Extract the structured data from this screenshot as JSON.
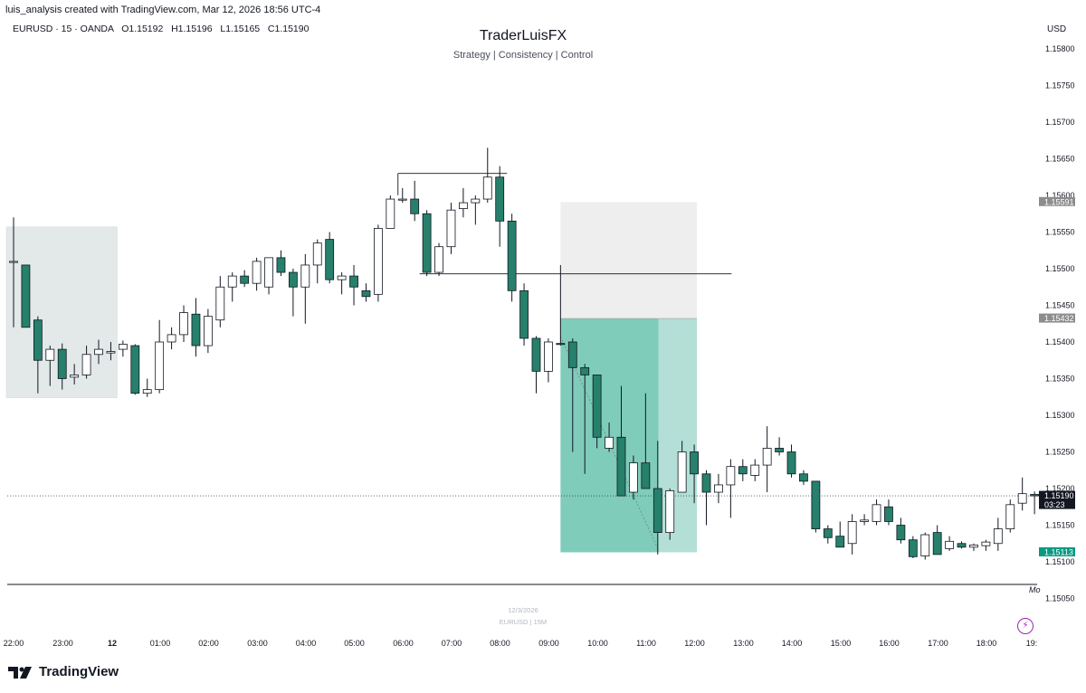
{
  "header": {
    "creator": "luis_analysis created with TradingView.com, Mar 12, 2026 18:56 UTC-4",
    "symbol_info": "EURUSD · 15 · OANDA   O1.15192   H1.15196   L1.15165   C1.15190",
    "currency": "USD"
  },
  "watermark": {
    "title": "TraderLuisFX",
    "subtitle": "Strategy | Consistency | Control"
  },
  "footer": {
    "date_label": "12/3/2026",
    "symbol_label": "EURUSD | 15M",
    "logo_text": "TradingView",
    "overflow_label": "Mo"
  },
  "colors": {
    "up_fill": "#ffffff",
    "down_fill": "#26806b",
    "wick": "#131722",
    "tp_zone": "#7fccbb",
    "tp_zone_light": "#b3dfd7",
    "sl_zone": "#eeeeee",
    "range_zone": "#e3e9e8",
    "price_tag_current": "#131722",
    "price_tag_tp": "#089981",
    "price_tag_grey": "#8c8c8c"
  },
  "chart_data": {
    "type": "candlestick",
    "symbol": "EURUSD",
    "timeframe": "15",
    "ylim": [
      1.1502,
      1.1583
    ],
    "yticks": [
      "1.15800",
      "1.15750",
      "1.15700",
      "1.15650",
      "1.15600",
      "1.15550",
      "1.15500",
      "1.15450",
      "1.15400",
      "1.15350",
      "1.15300",
      "1.15250",
      "1.15200",
      "1.15150",
      "1.15100",
      "1.15050"
    ],
    "xticks": [
      "22:00",
      "23:00",
      "12",
      "01:00",
      "02:00",
      "03:00",
      "04:00",
      "05:00",
      "06:00",
      "07:00",
      "08:00",
      "09:00",
      "10:00",
      "11:00",
      "12:00",
      "13:00",
      "14:00",
      "15:00",
      "16:00",
      "17:00",
      "18:00",
      "19:"
    ],
    "start_time": "21:45",
    "candles": [
      {
        "t": "21:45",
        "o": 1.1551,
        "h": 1.1557,
        "l": 1.1542,
        "c": 1.1551
      },
      {
        "t": "22:00",
        "o": 1.15505,
        "h": 1.15505,
        "l": 1.1542,
        "c": 1.1542
      },
      {
        "t": "22:15",
        "o": 1.1543,
        "h": 1.15435,
        "l": 1.1533,
        "c": 1.15375
      },
      {
        "t": "22:30",
        "o": 1.15375,
        "h": 1.15395,
        "l": 1.1534,
        "c": 1.1539
      },
      {
        "t": "22:45",
        "o": 1.1539,
        "h": 1.15398,
        "l": 1.15335,
        "c": 1.1535
      },
      {
        "t": "23:00",
        "o": 1.15352,
        "h": 1.1537,
        "l": 1.15342,
        "c": 1.15355
      },
      {
        "t": "23:15",
        "o": 1.15355,
        "h": 1.15395,
        "l": 1.1535,
        "c": 1.15383
      },
      {
        "t": "23:30",
        "o": 1.15383,
        "h": 1.15403,
        "l": 1.1537,
        "c": 1.1539
      },
      {
        "t": "23:45",
        "o": 1.15385,
        "h": 1.154,
        "l": 1.15375,
        "c": 1.15387
      },
      {
        "t": "00:00",
        "o": 1.1539,
        "h": 1.15402,
        "l": 1.1538,
        "c": 1.15397
      },
      {
        "t": "00:15",
        "o": 1.15395,
        "h": 1.15397,
        "l": 1.15328,
        "c": 1.1533
      },
      {
        "t": "00:30",
        "o": 1.1533,
        "h": 1.1535,
        "l": 1.15325,
        "c": 1.15335
      },
      {
        "t": "00:45",
        "o": 1.15335,
        "h": 1.1543,
        "l": 1.1533,
        "c": 1.154
      },
      {
        "t": "01:00",
        "o": 1.154,
        "h": 1.1542,
        "l": 1.1539,
        "c": 1.1541
      },
      {
        "t": "01:15",
        "o": 1.1541,
        "h": 1.1545,
        "l": 1.154,
        "c": 1.1544
      },
      {
        "t": "01:30",
        "o": 1.15438,
        "h": 1.1546,
        "l": 1.1538,
        "c": 1.15395
      },
      {
        "t": "01:45",
        "o": 1.15395,
        "h": 1.15445,
        "l": 1.15385,
        "c": 1.15435
      },
      {
        "t": "02:00",
        "o": 1.1543,
        "h": 1.1549,
        "l": 1.1542,
        "c": 1.15475
      },
      {
        "t": "02:15",
        "o": 1.15475,
        "h": 1.15495,
        "l": 1.15455,
        "c": 1.1549
      },
      {
        "t": "02:30",
        "o": 1.1549,
        "h": 1.15498,
        "l": 1.15475,
        "c": 1.1548
      },
      {
        "t": "02:45",
        "o": 1.1548,
        "h": 1.15515,
        "l": 1.1547,
        "c": 1.1551
      },
      {
        "t": "03:00",
        "o": 1.15475,
        "h": 1.15515,
        "l": 1.15465,
        "c": 1.15515
      },
      {
        "t": "03:15",
        "o": 1.15515,
        "h": 1.15525,
        "l": 1.1549,
        "c": 1.15495
      },
      {
        "t": "03:30",
        "o": 1.15495,
        "h": 1.155,
        "l": 1.15435,
        "c": 1.15475
      },
      {
        "t": "03:45",
        "o": 1.15475,
        "h": 1.1552,
        "l": 1.15425,
        "c": 1.15505
      },
      {
        "t": "04:00",
        "o": 1.15505,
        "h": 1.1554,
        "l": 1.1548,
        "c": 1.15535
      },
      {
        "t": "04:15",
        "o": 1.1554,
        "h": 1.1555,
        "l": 1.1548,
        "c": 1.15485
      },
      {
        "t": "04:30",
        "o": 1.15485,
        "h": 1.15495,
        "l": 1.15465,
        "c": 1.1549
      },
      {
        "t": "04:45",
        "o": 1.1549,
        "h": 1.15505,
        "l": 1.1545,
        "c": 1.15475
      },
      {
        "t": "05:00",
        "o": 1.1547,
        "h": 1.1548,
        "l": 1.15455,
        "c": 1.15462
      },
      {
        "t": "05:15",
        "o": 1.15465,
        "h": 1.1556,
        "l": 1.15455,
        "c": 1.15555
      },
      {
        "t": "05:30",
        "o": 1.15555,
        "h": 1.156,
        "l": 1.15555,
        "c": 1.15595
      },
      {
        "t": "05:45",
        "o": 1.15595,
        "h": 1.1561,
        "l": 1.1559,
        "c": 1.15595
      },
      {
        "t": "06:00",
        "o": 1.15595,
        "h": 1.1562,
        "l": 1.15565,
        "c": 1.15575
      },
      {
        "t": "06:15",
        "o": 1.15575,
        "h": 1.1558,
        "l": 1.1549,
        "c": 1.15495
      },
      {
        "t": "06:30",
        "o": 1.15495,
        "h": 1.15535,
        "l": 1.1549,
        "c": 1.1553
      },
      {
        "t": "06:45",
        "o": 1.1553,
        "h": 1.1559,
        "l": 1.1552,
        "c": 1.1558
      },
      {
        "t": "07:00",
        "o": 1.15582,
        "h": 1.1561,
        "l": 1.1557,
        "c": 1.1559
      },
      {
        "t": "07:15",
        "o": 1.1559,
        "h": 1.156,
        "l": 1.1556,
        "c": 1.15595
      },
      {
        "t": "07:30",
        "o": 1.15595,
        "h": 1.15665,
        "l": 1.1559,
        "c": 1.15625
      },
      {
        "t": "07:45",
        "o": 1.15625,
        "h": 1.1564,
        "l": 1.1553,
        "c": 1.15565
      },
      {
        "t": "08:00",
        "o": 1.15565,
        "h": 1.15575,
        "l": 1.15455,
        "c": 1.1547
      },
      {
        "t": "08:15",
        "o": 1.1547,
        "h": 1.1548,
        "l": 1.15395,
        "c": 1.15405
      },
      {
        "t": "08:30",
        "o": 1.15405,
        "h": 1.15408,
        "l": 1.1533,
        "c": 1.1536
      },
      {
        "t": "08:45",
        "o": 1.1536,
        "h": 1.15405,
        "l": 1.15345,
        "c": 1.154
      },
      {
        "t": "09:00",
        "o": 1.15398,
        "h": 1.15505,
        "l": 1.15395,
        "c": 1.15397
      },
      {
        "t": "09:15",
        "o": 1.154,
        "h": 1.15405,
        "l": 1.1525,
        "c": 1.15365
      },
      {
        "t": "09:30",
        "o": 1.15365,
        "h": 1.1537,
        "l": 1.1522,
        "c": 1.15355
      },
      {
        "t": "09:45",
        "o": 1.15355,
        "h": 1.15355,
        "l": 1.15255,
        "c": 1.1527
      },
      {
        "t": "10:00",
        "o": 1.15255,
        "h": 1.1529,
        "l": 1.1525,
        "c": 1.1527
      },
      {
        "t": "10:15",
        "o": 1.1527,
        "h": 1.1534,
        "l": 1.15195,
        "c": 1.1519
      },
      {
        "t": "10:30",
        "o": 1.15195,
        "h": 1.15245,
        "l": 1.15185,
        "c": 1.15235
      },
      {
        "t": "10:45",
        "o": 1.15235,
        "h": 1.1533,
        "l": 1.152,
        "c": 1.152
      },
      {
        "t": "11:00",
        "o": 1.152,
        "h": 1.15265,
        "l": 1.1511,
        "c": 1.1514
      },
      {
        "t": "11:15",
        "o": 1.1514,
        "h": 1.152,
        "l": 1.1513,
        "c": 1.15197
      },
      {
        "t": "11:30",
        "o": 1.15195,
        "h": 1.15265,
        "l": 1.15195,
        "c": 1.1525
      },
      {
        "t": "11:45",
        "o": 1.1525,
        "h": 1.1526,
        "l": 1.1518,
        "c": 1.1522
      },
      {
        "t": "12:00",
        "o": 1.1522,
        "h": 1.15225,
        "l": 1.1515,
        "c": 1.15195
      },
      {
        "t": "12:15",
        "o": 1.15195,
        "h": 1.1522,
        "l": 1.1518,
        "c": 1.15205
      },
      {
        "t": "12:30",
        "o": 1.15205,
        "h": 1.1524,
        "l": 1.1516,
        "c": 1.1523
      },
      {
        "t": "12:45",
        "o": 1.1523,
        "h": 1.1524,
        "l": 1.1521,
        "c": 1.1522
      },
      {
        "t": "13:00",
        "o": 1.15218,
        "h": 1.1524,
        "l": 1.1521,
        "c": 1.15232
      },
      {
        "t": "13:15",
        "o": 1.15232,
        "h": 1.15285,
        "l": 1.15195,
        "c": 1.15255
      },
      {
        "t": "13:30",
        "o": 1.15255,
        "h": 1.1527,
        "l": 1.15245,
        "c": 1.1525
      },
      {
        "t": "13:45",
        "o": 1.1525,
        "h": 1.1526,
        "l": 1.15215,
        "c": 1.1522
      },
      {
        "t": "14:00",
        "o": 1.1522,
        "h": 1.15225,
        "l": 1.15205,
        "c": 1.1521
      },
      {
        "t": "14:15",
        "o": 1.1521,
        "h": 1.1521,
        "l": 1.1514,
        "c": 1.15145
      },
      {
        "t": "14:30",
        "o": 1.15145,
        "h": 1.1515,
        "l": 1.15125,
        "c": 1.15133
      },
      {
        "t": "14:45",
        "o": 1.15135,
        "h": 1.15155,
        "l": 1.1512,
        "c": 1.1512
      },
      {
        "t": "15:00",
        "o": 1.15125,
        "h": 1.15165,
        "l": 1.1511,
        "c": 1.15155
      },
      {
        "t": "15:15",
        "o": 1.15155,
        "h": 1.15165,
        "l": 1.1515,
        "c": 1.15157
      },
      {
        "t": "15:30",
        "o": 1.15155,
        "h": 1.15185,
        "l": 1.1515,
        "c": 1.15178
      },
      {
        "t": "15:45",
        "o": 1.15175,
        "h": 1.15185,
        "l": 1.1515,
        "c": 1.15155
      },
      {
        "t": "16:00",
        "o": 1.1515,
        "h": 1.1516,
        "l": 1.15125,
        "c": 1.1513
      },
      {
        "t": "16:15",
        "o": 1.1513,
        "h": 1.15135,
        "l": 1.15105,
        "c": 1.15107
      },
      {
        "t": "16:30",
        "o": 1.15108,
        "h": 1.1514,
        "l": 1.15103,
        "c": 1.15137
      },
      {
        "t": "16:45",
        "o": 1.1514,
        "h": 1.1515,
        "l": 1.1511,
        "c": 1.1511
      },
      {
        "t": "17:00",
        "o": 1.15118,
        "h": 1.15135,
        "l": 1.15115,
        "c": 1.15128
      },
      {
        "t": "17:15",
        "o": 1.15125,
        "h": 1.15128,
        "l": 1.15118,
        "c": 1.1512
      },
      {
        "t": "17:30",
        "o": 1.1512,
        "h": 1.15125,
        "l": 1.15115,
        "c": 1.15123
      },
      {
        "t": "17:45",
        "o": 1.15122,
        "h": 1.1513,
        "l": 1.15115,
        "c": 1.15127
      },
      {
        "t": "18:00",
        "o": 1.15125,
        "h": 1.1516,
        "l": 1.15115,
        "c": 1.15145
      },
      {
        "t": "18:15",
        "o": 1.15145,
        "h": 1.15185,
        "l": 1.1514,
        "c": 1.15178
      },
      {
        "t": "18:30",
        "o": 1.1518,
        "h": 1.15215,
        "l": 1.1517,
        "c": 1.15193
      },
      {
        "t": "18:45",
        "o": 1.15192,
        "h": 1.15196,
        "l": 1.15165,
        "c": 1.1519
      }
    ],
    "price_tags": [
      {
        "label": "1.15591",
        "value": 1.15591,
        "color": "#8c8c8c"
      },
      {
        "label": "1.15432",
        "value": 1.15432,
        "color": "#8c8c8c"
      },
      {
        "label": "1.15190",
        "value": 1.1519,
        "color": "#131722",
        "sub": "03:23"
      },
      {
        "label": "1.15113",
        "value": 1.15113,
        "color": "#089981"
      }
    ],
    "current_price": 1.1519,
    "annotations": {
      "range_box": {
        "from": "21:45",
        "to": "23:45",
        "top": 1.15557,
        "bottom": 1.15324
      },
      "position": {
        "type": "short",
        "start": "09:00",
        "end": "11:45",
        "entry": 1.15432,
        "stop": 1.15591,
        "target": 1.15113,
        "filled_to": "11:00"
      },
      "high_line": {
        "from": "05:45",
        "to": "07:45",
        "price": 1.1563
      },
      "level_line": {
        "from": "06:15",
        "to": "12:30",
        "price": 1.15493
      }
    },
    "grid": false
  }
}
